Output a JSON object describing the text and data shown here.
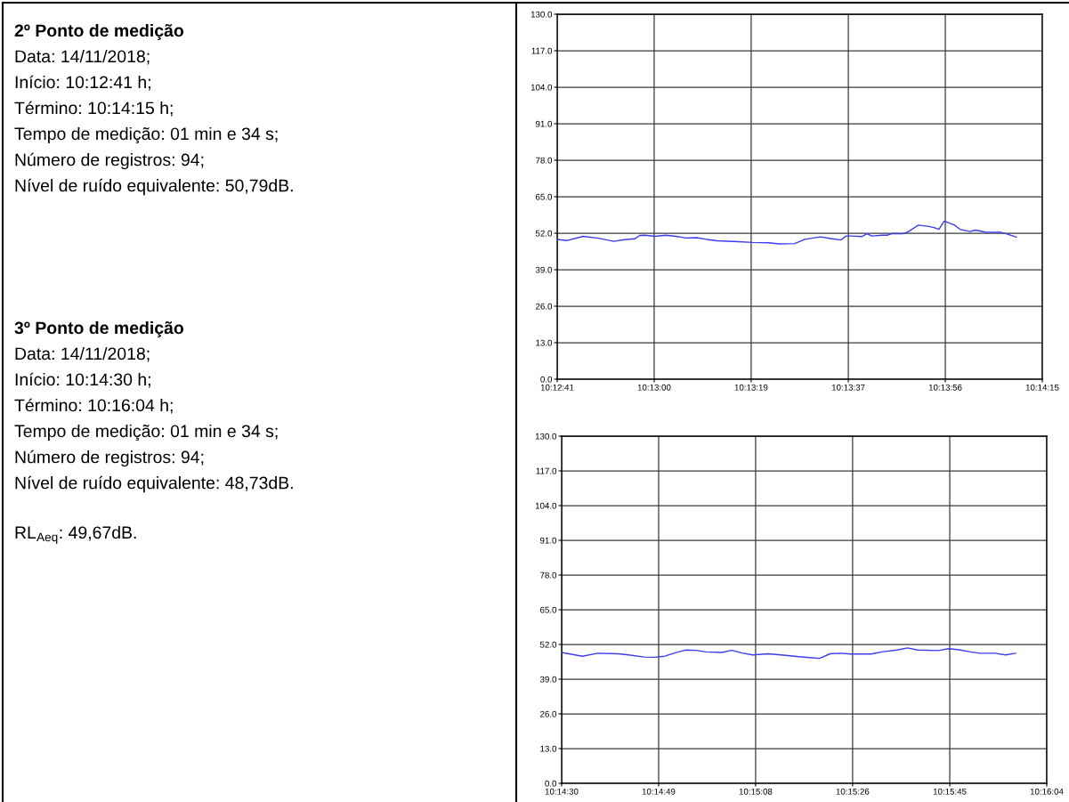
{
  "chart_data": [
    {
      "type": "other",
      "title": "2º Ponto de medição",
      "annotations": [
        "Data: 14/11/2018;",
        "Início: 10:12:41 h;",
        "Término: 10:14:15 h;",
        "Tempo de medição: 01 min e 34 s;",
        "Número de registros: 94;",
        "Nível de ruído equivalente: 50,79dB."
      ]
    },
    {
      "type": "other",
      "title": "3º Ponto de medição",
      "annotations": [
        "Data: 14/11/2018;",
        "Início: 10:14:30 h;",
        "Término: 10:16:04 h;",
        "Tempo de medição: 01 min e 34 s;",
        "Número de registros: 94;",
        "Nível de ruído equivalente: 48,73dB."
      ]
    },
    {
      "type": "other",
      "annotations": [
        "RL$_{Aeq}$: 49,67dB."
      ]
    },
    {
      "type": "line",
      "color": "#3c3cf0",
      "grid": true,
      "x": [
        10.21139,
        10.21194,
        10.21278,
        10.21361,
        10.21444,
        10.215,
        10.21556,
        10.21583,
        10.21611,
        10.21667,
        10.21722,
        10.21778,
        10.21833,
        10.21889,
        10.21944,
        10.22,
        10.22111,
        10.22194,
        10.22278,
        10.22333,
        10.22417,
        10.22472,
        10.22556,
        10.22611,
        10.22667,
        10.22694,
        10.22722,
        10.22778,
        10.22806,
        10.22833,
        10.22889,
        10.22917,
        10.22944,
        10.23,
        10.23028,
        10.23083,
        10.23139,
        10.23167,
        10.23194,
        10.23222,
        10.23278,
        10.23306,
        10.23361,
        10.23389,
        10.23444,
        10.23528,
        10.23556,
        10.23611
      ],
      "values": [
        49.8,
        49.4,
        50.9,
        50.2,
        49.1,
        49.7,
        50.0,
        51.2,
        51.3,
        50.9,
        51.3,
        50.9,
        50.3,
        50.4,
        49.8,
        49.3,
        49.0,
        48.7,
        48.6,
        48.2,
        48.3,
        49.8,
        50.7,
        50.1,
        49.6,
        51.0,
        51.0,
        50.8,
        51.8,
        51.0,
        51.3,
        51.3,
        51.9,
        51.8,
        52.5,
        54.9,
        54.4,
        54.0,
        53.4,
        56.3,
        54.9,
        53.4,
        52.6,
        53.1,
        52.4,
        52.3,
        51.8,
        50.6
      ],
      "xlim": [
        10.21139,
        10.2375
      ],
      "xticks": [
        {
          "value": 10.21139,
          "label": "10:12:41"
        },
        {
          "value": 10.21661,
          "label": "10:13:00"
        },
        {
          "value": 10.22183,
          "label": "10:13:19"
        },
        {
          "value": 10.22706,
          "label": "10:13:37"
        },
        {
          "value": 10.23228,
          "label": "10:13:56"
        },
        {
          "value": 10.2375,
          "label": "10:14:15"
        }
      ],
      "ylim": [
        0,
        130
      ],
      "yticks": [
        {
          "value": 0,
          "label": "0.0"
        },
        {
          "value": 13,
          "label": "13.0"
        },
        {
          "value": 26,
          "label": "26.0"
        },
        {
          "value": 39,
          "label": "39.0"
        },
        {
          "value": 52,
          "label": "52.0"
        },
        {
          "value": 65,
          "label": "65.0"
        },
        {
          "value": 78,
          "label": "78.0"
        },
        {
          "value": 91,
          "label": "91.0"
        },
        {
          "value": 104,
          "label": "104.0"
        },
        {
          "value": 117,
          "label": "117.0"
        },
        {
          "value": 130,
          "label": "130.0"
        }
      ]
    },
    {
      "type": "line",
      "color": "#3c3cf0",
      "grid": true,
      "x": [
        10.24167,
        10.24278,
        10.24361,
        10.24472,
        10.24528,
        10.24611,
        10.24667,
        10.24722,
        10.24778,
        10.24833,
        10.24889,
        10.24944,
        10.25028,
        10.25083,
        10.25139,
        10.25194,
        10.25278,
        10.25361,
        10.25444,
        10.255,
        10.25556,
        10.25611,
        10.25667,
        10.25722,
        10.25833,
        10.25889,
        10.25972,
        10.26028,
        10.26083,
        10.26194,
        10.2625,
        10.26306,
        10.26361,
        10.26417,
        10.265,
        10.26556,
        10.26611
      ],
      "values": [
        49.0,
        47.6,
        48.7,
        48.5,
        48.1,
        47.3,
        47.2,
        47.6,
        48.9,
        49.9,
        49.8,
        49.2,
        49.0,
        49.8,
        48.8,
        48.1,
        48.5,
        48.0,
        47.4,
        47.1,
        46.8,
        48.5,
        48.7,
        48.4,
        48.4,
        49.2,
        49.9,
        50.7,
        49.9,
        49.7,
        50.4,
        50.0,
        49.3,
        48.7,
        48.7,
        48.1,
        48.7
      ],
      "xlim": [
        10.24167,
        10.26778
      ],
      "xticks": [
        {
          "value": 10.24167,
          "label": "10:14:30"
        },
        {
          "value": 10.24689,
          "label": "10:14:49"
        },
        {
          "value": 10.25211,
          "label": "10:15:08"
        },
        {
          "value": 10.25733,
          "label": "10:15:26"
        },
        {
          "value": 10.26256,
          "label": "10:15:45"
        },
        {
          "value": 10.26778,
          "label": "10:16:04"
        }
      ],
      "ylim": [
        0,
        130
      ],
      "yticks": [
        {
          "value": 0,
          "label": "0.0"
        },
        {
          "value": 13,
          "label": "13.0"
        },
        {
          "value": 26,
          "label": "26.0"
        },
        {
          "value": 39,
          "label": "39.0"
        },
        {
          "value": 52,
          "label": "52.0"
        },
        {
          "value": 65,
          "label": "65.0"
        },
        {
          "value": 78,
          "label": "78.0"
        },
        {
          "value": 91,
          "label": "91.0"
        },
        {
          "value": 104,
          "label": "104.0"
        },
        {
          "value": 117,
          "label": "117.0"
        },
        {
          "value": 130,
          "label": "130.0"
        }
      ]
    }
  ]
}
